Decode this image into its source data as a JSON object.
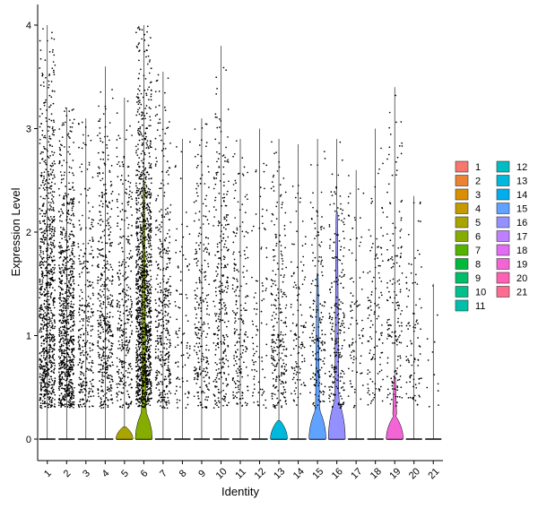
{
  "chart_data": {
    "type": "violin",
    "xlabel": "Identity",
    "ylabel": "Expression Level",
    "ylim": [
      -0.2,
      4.2
    ],
    "yticks": [
      0,
      1,
      2,
      3,
      4
    ],
    "categories": [
      "1",
      "2",
      "3",
      "4",
      "5",
      "6",
      "7",
      "8",
      "9",
      "10",
      "11",
      "12",
      "13",
      "14",
      "15",
      "16",
      "17",
      "18",
      "19",
      "20",
      "21"
    ],
    "max_values": [
      4.0,
      3.2,
      3.1,
      3.6,
      3.3,
      4.0,
      3.55,
      2.9,
      3.1,
      3.8,
      2.9,
      3.0,
      2.9,
      2.85,
      2.9,
      2.9,
      2.6,
      3.0,
      3.4,
      2.35,
      1.5
    ],
    "point_counts": [
      900,
      850,
      300,
      450,
      330,
      1300,
      400,
      90,
      250,
      300,
      200,
      90,
      250,
      110,
      170,
      220,
      90,
      120,
      170,
      90,
      12
    ],
    "violin_peak_heights": [
      0,
      0,
      0,
      0,
      0.12,
      0.28,
      0,
      0,
      0,
      0,
      0,
      0,
      0.18,
      0,
      0.3,
      0.4,
      0,
      0,
      0.22,
      0,
      0
    ],
    "violin_upper_extent": [
      0,
      0,
      0,
      0,
      0,
      2.5,
      0,
      0,
      0,
      0,
      0,
      0,
      0,
      0,
      1.6,
      2.2,
      0,
      0,
      0.6,
      0,
      0
    ],
    "legend": {
      "position": "right",
      "entries": [
        {
          "label": "1",
          "color": "#F8766D"
        },
        {
          "label": "2",
          "color": "#EB8335"
        },
        {
          "label": "3",
          "color": "#DA8F00"
        },
        {
          "label": "4",
          "color": "#C49A00"
        },
        {
          "label": "5",
          "color": "#A9A400"
        },
        {
          "label": "6",
          "color": "#86AC00"
        },
        {
          "label": "7",
          "color": "#53B400"
        },
        {
          "label": "8",
          "color": "#00BA38"
        },
        {
          "label": "9",
          "color": "#00BE67"
        },
        {
          "label": "10",
          "color": "#00C08B"
        },
        {
          "label": "11",
          "color": "#00C0AB"
        },
        {
          "label": "12",
          "color": "#00BDC4"
        },
        {
          "label": "13",
          "color": "#00B8DB"
        },
        {
          "label": "14",
          "color": "#00AEF0"
        },
        {
          "label": "15",
          "color": "#5FA2FF"
        },
        {
          "label": "16",
          "color": "#9590FF"
        },
        {
          "label": "17",
          "color": "#BF80FF"
        },
        {
          "label": "18",
          "color": "#E06DF4"
        },
        {
          "label": "19",
          "color": "#F364D4"
        },
        {
          "label": "20",
          "color": "#FF61B4"
        },
        {
          "label": "21",
          "color": "#FF6C90"
        }
      ]
    },
    "grid": false
  }
}
